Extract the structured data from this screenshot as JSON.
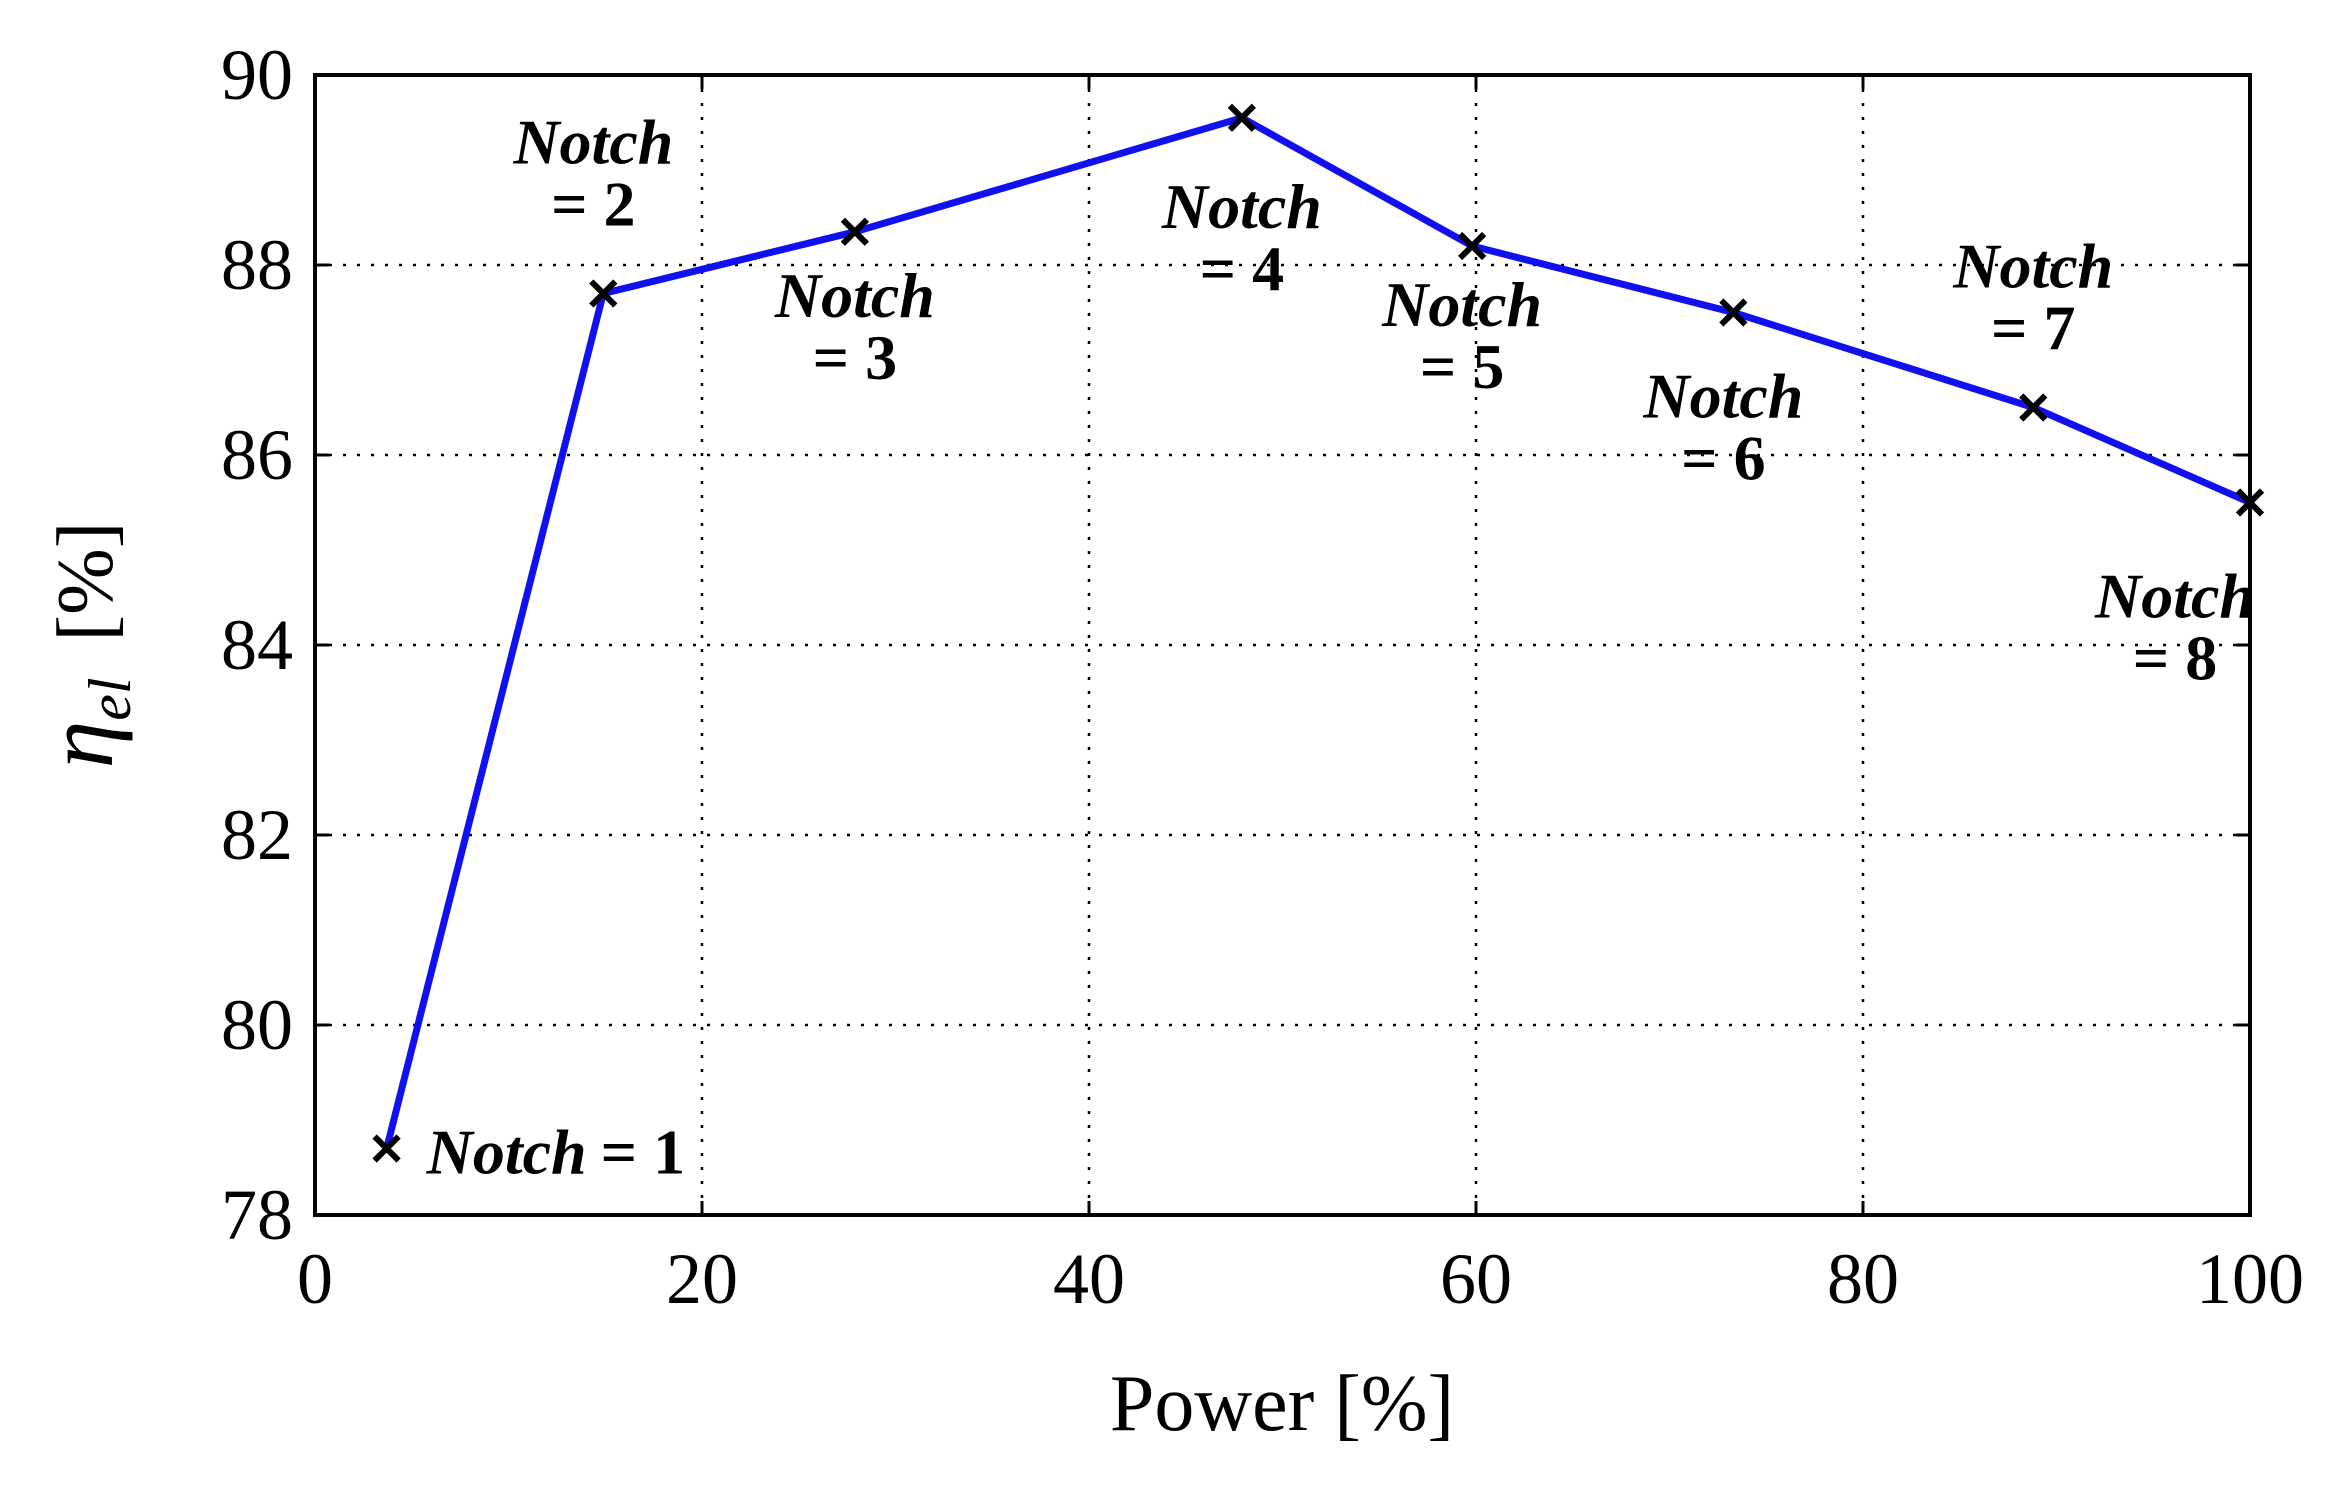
{
  "chart_data": {
    "type": "line",
    "title": "",
    "xlabel": "Power [%]",
    "ylabel_symbol": "η",
    "ylabel_subscript": "el",
    "ylabel_unit": "[%]",
    "xlim": [
      0,
      100
    ],
    "ylim": [
      78,
      90
    ],
    "xticks": [
      0,
      20,
      40,
      60,
      80,
      100
    ],
    "yticks": [
      78,
      80,
      82,
      84,
      86,
      88,
      90
    ],
    "grid": true,
    "line_color": "#1010f0",
    "marker_color": "#000000",
    "marker": "x",
    "series": [
      {
        "x": [
          3.7,
          14.9,
          27.9,
          47.9,
          59.8,
          73.3,
          88.8,
          100
        ],
        "y": [
          78.7,
          87.7,
          88.35,
          89.55,
          88.2,
          87.5,
          86.5,
          85.5
        ]
      }
    ],
    "annotations": [
      {
        "word": "Notch",
        "value": "= 1",
        "inline": true
      },
      {
        "word": "Notch",
        "value": "= 2"
      },
      {
        "word": "Notch",
        "value": "= 3"
      },
      {
        "word": "Notch",
        "value": "= 4"
      },
      {
        "word": "Notch",
        "value": "= 5"
      },
      {
        "word": "Notch",
        "value": "= 6"
      },
      {
        "word": "Notch",
        "value": "= 7"
      },
      {
        "word": "Notch",
        "value": "= 8"
      }
    ]
  }
}
